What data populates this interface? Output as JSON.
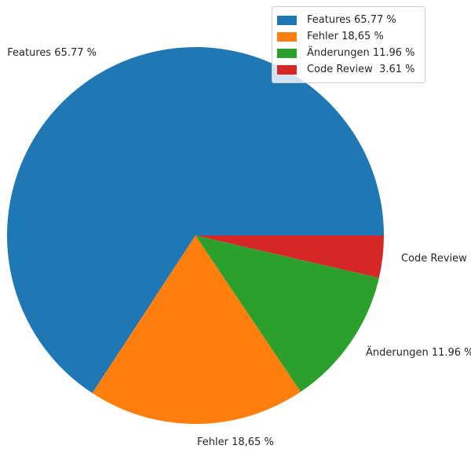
{
  "chart_data": {
    "type": "pie",
    "title": "",
    "labels": [
      "Features 65.77 %",
      "Fehler 18,65 %",
      "Änderungen 11.96 %",
      "Code Review  3.61 %"
    ],
    "values": [
      65.77,
      18.65,
      11.96,
      3.61
    ],
    "colors": [
      "#1f77b4",
      "#ff7f0e",
      "#2ca02c",
      "#d62728"
    ],
    "start_angle": 0,
    "direction": "counterclockwise",
    "label_distance": 1.1,
    "background": "#ffffff",
    "text_color": "#262626",
    "legend": {
      "position": "upper right",
      "entries": [
        "Features 65.77 %",
        "Fehler 18,65 %",
        "Änderungen 11.96 %",
        "Code Review  3.61 %"
      ],
      "border_color": "#cccccc"
    }
  }
}
